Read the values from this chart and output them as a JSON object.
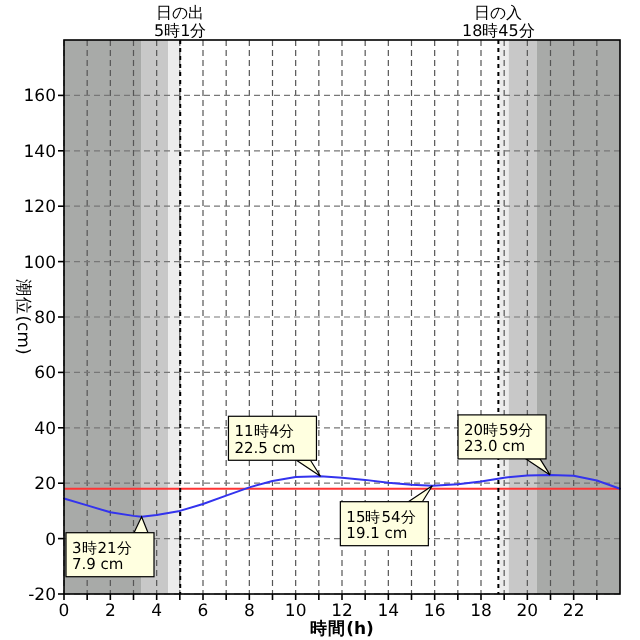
{
  "chart_data": {
    "type": "line",
    "xlabel": "時間(h)",
    "ylabel": "潮位(cm)",
    "x": [
      0,
      1,
      2,
      3,
      3.35,
      4,
      5,
      6,
      7,
      8,
      9,
      10,
      11.07,
      12,
      13,
      14,
      15,
      15.9,
      17,
      18,
      19,
      20,
      20.98,
      22,
      23,
      24
    ],
    "series": [
      {
        "color": "#3333ee",
        "values": [
          14.5,
          12,
          9.5,
          8.2,
          7.9,
          8.5,
          10,
          12.5,
          15.5,
          18.5,
          20.8,
          22.2,
          22.5,
          22,
          21.2,
          20.2,
          19.4,
          19.1,
          19.6,
          20.6,
          22,
          22.8,
          23.0,
          22.7,
          21,
          18
        ]
      }
    ],
    "xlim": [
      0,
      24
    ],
    "ylim": [
      -20,
      180
    ],
    "xticks": [
      0,
      {
        "value": 1,
        "label": null
      },
      2,
      {
        "value": 3,
        "label": null
      },
      4,
      {
        "value": 5,
        "label": null
      },
      6,
      {
        "value": 7,
        "label": null
      },
      8,
      {
        "value": 9,
        "label": null
      },
      10,
      {
        "value": 11,
        "label": null
      },
      12,
      {
        "value": 13,
        "label": null
      },
      14,
      {
        "value": 15,
        "label": null
      },
      16,
      {
        "value": 17,
        "label": null
      },
      18,
      {
        "value": 19,
        "label": null
      },
      20,
      {
        "value": 21,
        "label": null
      },
      22,
      {
        "value": 23,
        "label": null
      }
    ],
    "yticks": [
      -20,
      0,
      20,
      40,
      60,
      80,
      100,
      120,
      140,
      160
    ],
    "grid": true,
    "marker": "none",
    "line_style": "solid",
    "bands": [
      {
        "axis": "x",
        "from": 0,
        "to": 3.35,
        "color": "#a8aaa8"
      },
      {
        "axis": "x",
        "from": 3.35,
        "to": 4.5,
        "color": "#c8c8c8"
      },
      {
        "axis": "x",
        "from": 4.5,
        "to": 5.0,
        "color": "#ececec"
      },
      {
        "axis": "x",
        "from": 18.8,
        "to": 19.2,
        "color": "#ececec"
      },
      {
        "axis": "x",
        "from": 19.2,
        "to": 20.4,
        "color": "#c8c8c8"
      },
      {
        "axis": "x",
        "from": 20.4,
        "to": 24,
        "color": "#a8aaa8"
      }
    ],
    "ref_lines": [
      {
        "axis": "y",
        "value": 18,
        "color": "#ff3333",
        "line_style": "solid"
      },
      {
        "axis": "x",
        "value": 5.0167,
        "label": "日の出\n5時1分",
        "color": "#000000",
        "line_style": "dotted"
      },
      {
        "axis": "x",
        "value": 18.75,
        "label": "日の入\n18時45分",
        "color": "#000000",
        "line_style": "dotted"
      }
    ],
    "annotations": [
      {
        "text": "3時21分\n7.9 cm",
        "x": 3.35,
        "y": 7.9
      },
      {
        "text": "11時4分\n22.5 cm",
        "x": 11.07,
        "y": 22.5
      },
      {
        "text": "15時54分\n19.1 cm",
        "x": 15.9,
        "y": 19.1
      },
      {
        "text": "20時59分\n23.0 cm",
        "x": 20.98,
        "y": 23.0
      }
    ]
  }
}
